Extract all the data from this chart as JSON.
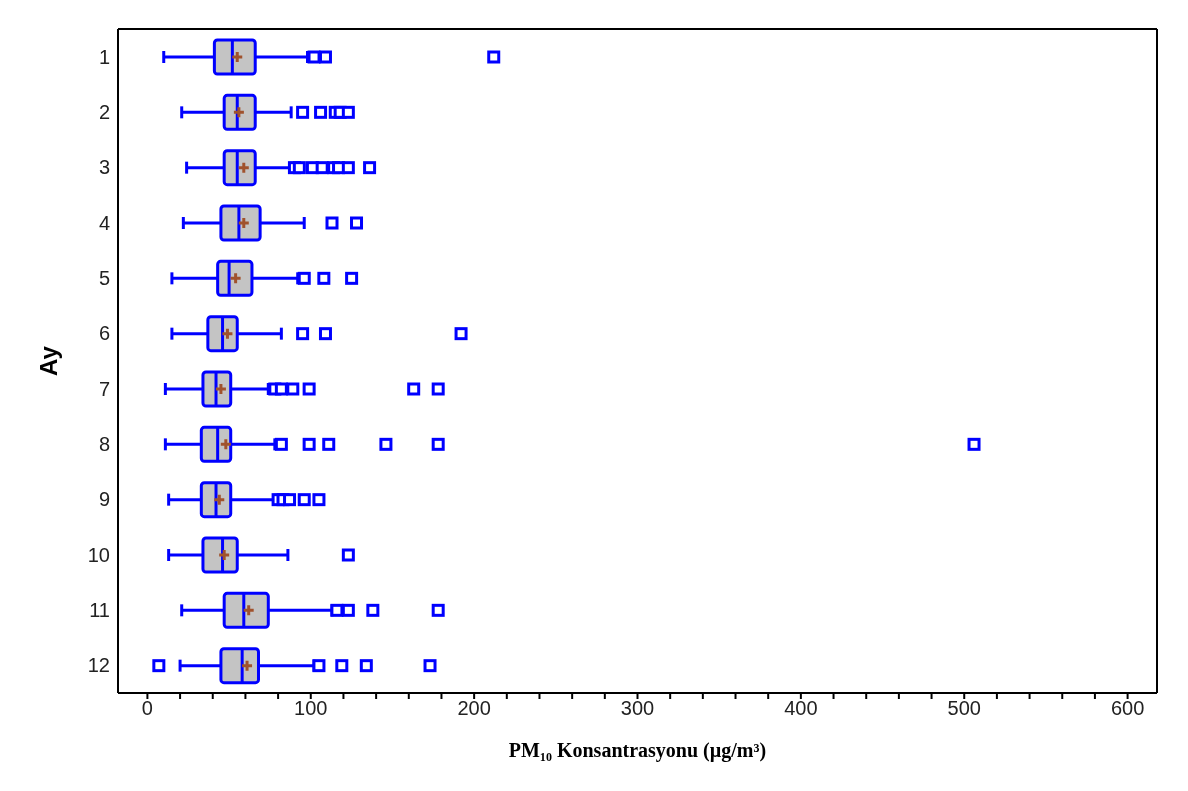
{
  "chart_data": {
    "type": "box",
    "orientation": "horizontal",
    "xlabel": "PM₁₀ Konsantrasyonu (µg/m³)",
    "ylabel": "Ay",
    "categories": [
      "1",
      "2",
      "3",
      "4",
      "5",
      "6",
      "7",
      "8",
      "9",
      "10",
      "11",
      "12"
    ],
    "series": [
      {
        "color": "#0000ff",
        "boxes": [
          {
            "low": 10,
            "q1": 41,
            "median": 52,
            "q3": 66,
            "high": 98,
            "mean": 55,
            "outliers": [
              102,
              109,
              212
            ]
          },
          {
            "low": 21,
            "q1": 47,
            "median": 55,
            "q3": 66,
            "high": 88,
            "mean": 56,
            "outliers": [
              95,
              106,
              115,
              118,
              123
            ]
          },
          {
            "low": 24,
            "q1": 47,
            "median": 55,
            "q3": 66,
            "high": 88,
            "mean": 59,
            "outliers": [
              90,
              93,
              101,
              107,
              114,
              117,
              123,
              136
            ]
          },
          {
            "low": 22,
            "q1": 45,
            "median": 56,
            "q3": 69,
            "high": 96,
            "mean": 59,
            "outliers": [
              113,
              128
            ]
          },
          {
            "low": 15,
            "q1": 43,
            "median": 50,
            "q3": 64,
            "high": 92,
            "mean": 54,
            "outliers": [
              96,
              108,
              125
            ]
          },
          {
            "low": 15,
            "q1": 37,
            "median": 46,
            "q3": 55,
            "high": 82,
            "mean": 49,
            "outliers": [
              95,
              109,
              192
            ]
          },
          {
            "low": 11,
            "q1": 34,
            "median": 42,
            "q3": 51,
            "high": 74,
            "mean": 45,
            "outliers": [
              78,
              82,
              89,
              99,
              163,
              178
            ]
          },
          {
            "low": 11,
            "q1": 33,
            "median": 43,
            "q3": 51,
            "high": 78,
            "mean": 48,
            "outliers": [
              82,
              99,
              111,
              146,
              178,
              506
            ]
          },
          {
            "low": 13,
            "q1": 33,
            "median": 42,
            "q3": 51,
            "high": 78,
            "mean": 44,
            "outliers": [
              80,
              83,
              87,
              96,
              105
            ]
          },
          {
            "low": 13,
            "q1": 34,
            "median": 46,
            "q3": 55,
            "high": 86,
            "mean": 47,
            "outliers": [
              123
            ]
          },
          {
            "low": 21,
            "q1": 47,
            "median": 59,
            "q3": 74,
            "high": 113,
            "mean": 62,
            "outliers": [
              116,
              123,
              138,
              178
            ]
          },
          {
            "low": 20,
            "q1": 45,
            "median": 58,
            "q3": 68,
            "high": 102,
            "mean": 61,
            "outliers": [
              7,
              105,
              119,
              134,
              173
            ]
          }
        ]
      }
    ],
    "xlim": [
      -18,
      618
    ],
    "xticks": [
      0,
      {
        "value": 20,
        "label": null
      },
      {
        "value": 40,
        "label": null
      },
      {
        "value": 60,
        "label": null
      },
      {
        "value": 80,
        "label": null
      },
      100,
      {
        "value": 120,
        "label": null
      },
      {
        "value": 140,
        "label": null
      },
      {
        "value": 160,
        "label": null
      },
      {
        "value": 180,
        "label": null
      },
      200,
      {
        "value": 220,
        "label": null
      },
      {
        "value": 240,
        "label": null
      },
      {
        "value": 260,
        "label": null
      },
      {
        "value": 280,
        "label": null
      },
      300,
      {
        "value": 320,
        "label": null
      },
      {
        "value": 340,
        "label": null
      },
      {
        "value": 360,
        "label": null
      },
      {
        "value": 380,
        "label": null
      },
      400,
      {
        "value": 420,
        "label": null
      },
      {
        "value": 440,
        "label": null
      },
      {
        "value": 460,
        "label": null
      },
      {
        "value": 480,
        "label": null
      },
      500,
      {
        "value": 520,
        "label": null
      },
      {
        "value": 540,
        "label": null
      },
      {
        "value": 560,
        "label": null
      },
      {
        "value": 580,
        "label": null
      },
      600
    ],
    "grid": false,
    "legend": false
  }
}
